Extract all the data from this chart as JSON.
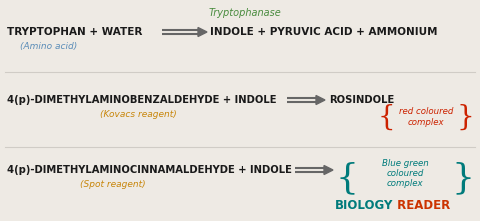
{
  "bg_color": "#eeeae4",
  "title_text": "Tryptophanase",
  "title_color": "#4a8c3f",
  "row1_left": "TRYPTOPHAN + WATER",
  "row1_right": "INDOLE + PYRUVIC ACID + AMMONIUM",
  "row1_sub": "(Amino acid)",
  "row1_sub_color": "#5b8db8",
  "row2_main": "4(p)-DIMETHYLAMINOBENZALDEHYDE + INDOLE",
  "row2_result": "ROSINDOLE",
  "row2_sub": "(Kovacs reagent)",
  "row2_sub_color": "#c8860a",
  "row2_brace_text1": "red coloured",
  "row2_brace_text2": "complex",
  "row2_brace_color": "#cc2200",
  "row3_main": "4(p)-DIMETHYLAMINOCINNAMALDEHYDE + INDOLE",
  "row3_sub": "(Spot reagent)",
  "row3_sub_color": "#c8860a",
  "row3_brace_text1": "Blue green",
  "row3_brace_text2": "coloured",
  "row3_brace_text3": "complex",
  "row3_brace_color": "#007b7b",
  "main_text_color": "#1a1a1a",
  "arrow_color": "#666666",
  "brand_biology": "#007b7b",
  "brand_reader": "#cc3300",
  "divider_color": "#d0ccc6"
}
